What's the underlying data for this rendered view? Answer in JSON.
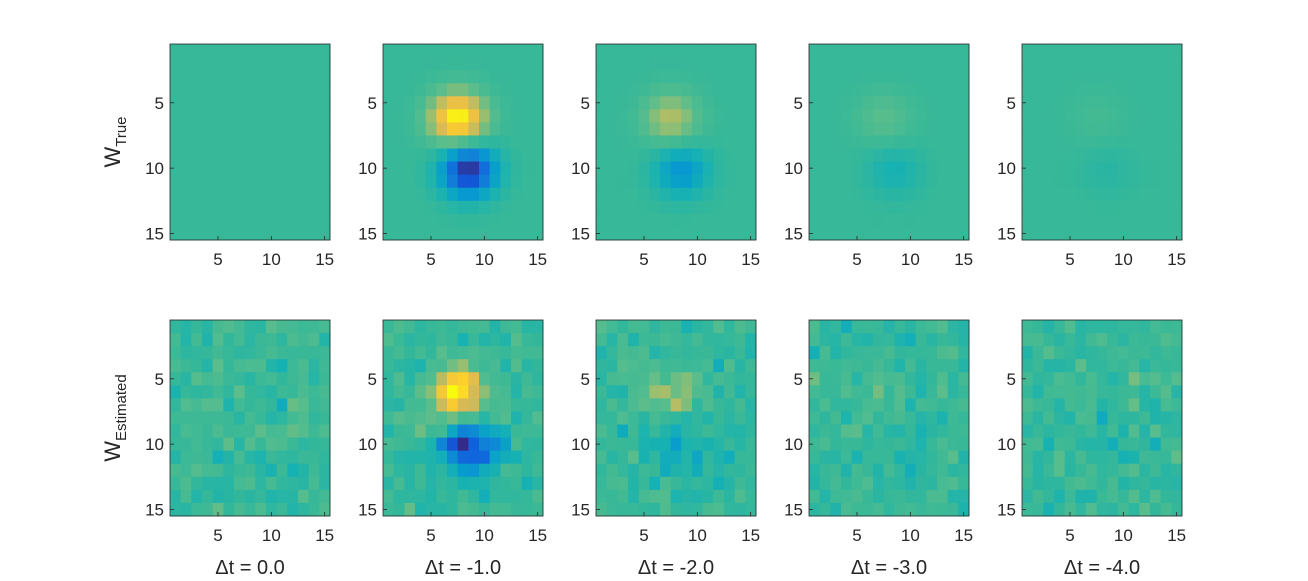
{
  "chart_data": {
    "type": "heatmap",
    "grid_size": 15,
    "colormap": "parula",
    "color_range": [
      -1,
      1
    ],
    "x_ticks": [
      5,
      10,
      15
    ],
    "y_ticks": [
      5,
      10,
      15
    ],
    "row_labels": [
      {
        "main": "W",
        "sub": "True"
      },
      {
        "main": "W",
        "sub": "Estimated"
      }
    ],
    "column_labels": [
      "Δt = 0.0",
      "Δt = -1.0",
      "Δt = -2.0",
      "Δt = -3.0",
      "Δt = -4.0"
    ],
    "kernel": {
      "positive_center": [
        7.5,
        6.2
      ],
      "negative_center": [
        8.5,
        10.2
      ],
      "sigma_x": 1.8,
      "sigma_y": 1.4,
      "amplitudes_true": [
        0.0,
        1.0,
        0.45,
        0.2,
        0.08
      ],
      "amplitudes_estimated": [
        0.0,
        0.95,
        0.32,
        0.1,
        0.03
      ],
      "estimated_noise": 0.09
    }
  }
}
